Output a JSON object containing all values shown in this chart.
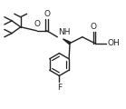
{
  "background": "#ffffff",
  "line_color": "#222222",
  "line_width": 1.0,
  "font_size": 6.5,
  "figsize": [
    1.39,
    1.2
  ],
  "dpi": 100,
  "xlim": [
    0,
    10
  ],
  "ylim": [
    0,
    8.6
  ]
}
